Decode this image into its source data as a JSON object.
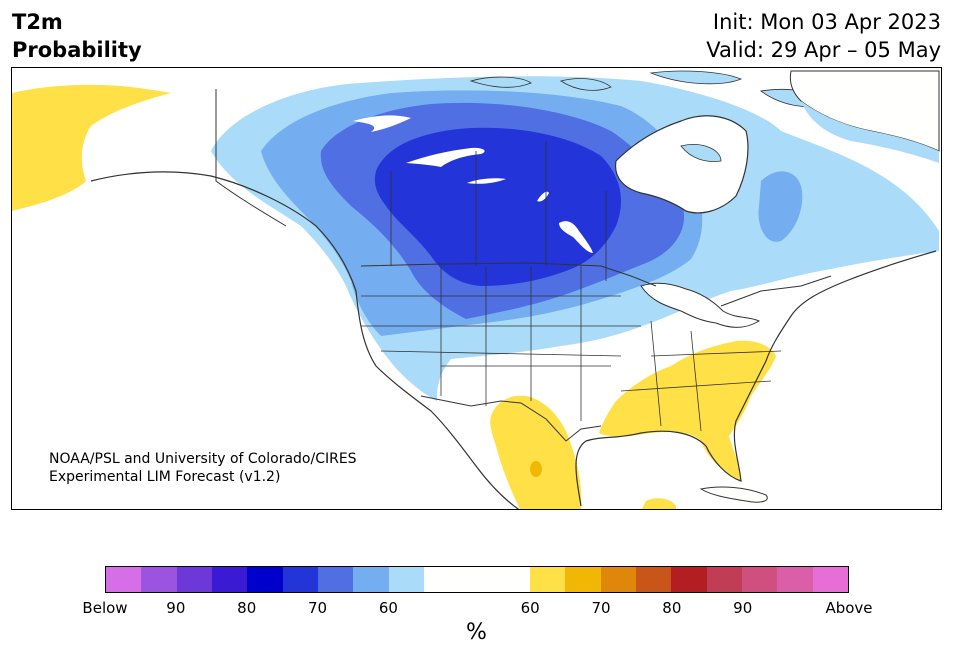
{
  "title": {
    "line1": "T2m",
    "line2": "Probability"
  },
  "dates": {
    "init": "Init: Mon 03 Apr 2023",
    "valid": "Valid: 29 Apr – 05 May"
  },
  "credit": {
    "line1": "NOAA/PSL and University of Colorado/CIRES",
    "line2": "Experimental LIM Forecast (v1.2)"
  },
  "colorbar": {
    "colors_below": [
      "#d66ee8",
      "#9b54e0",
      "#6c38d8",
      "#3a1ad4",
      "#0000cc",
      "#2334d8",
      "#4f6fe3",
      "#74aef0",
      "#aadcfa"
    ],
    "color_neutral": "#fffffe",
    "colors_above": [
      "#ffe047",
      "#f2b705",
      "#df870b",
      "#c95618",
      "#b21e22",
      "#c03d55",
      "#cf4f7f",
      "#db5ea8",
      "#e66ed6"
    ],
    "ticks": [
      "Below",
      "90",
      "80",
      "70",
      "60",
      "60",
      "70",
      "80",
      "90",
      "Above"
    ],
    "unit": "%"
  },
  "map": {
    "region": "North America",
    "colors": {
      "land": "#fffffe",
      "border": "#333333",
      "lake": "#ffffff",
      "blue_60": "#aadcfa",
      "blue_70": "#74aef0",
      "blue_75": "#4f6fe3",
      "blue_80": "#2334d8",
      "yellow_60": "#ffe047",
      "orange_65": "#f2b705"
    }
  }
}
